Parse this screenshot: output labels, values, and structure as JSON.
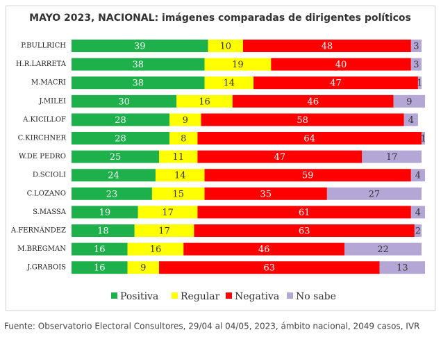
{
  "chart_data": {
    "type": "stacked-bar-horizontal",
    "title": "MAYO 2023, NACIONAL: imágenes comparadas de dirigentes políticos",
    "categories": [
      "P.BULLRICH",
      "H.R.LARRETA",
      "M.MACRI",
      "J.MILEI",
      "A.KICILLOF",
      "C.KIRCHNER",
      "W.DE PEDRO",
      "D.SCIOLI",
      "C.LOZANO",
      "S.MASSA",
      "A.FERNÁNDEZ",
      "M.BREGMAN",
      "J.GRABOIS"
    ],
    "series": [
      {
        "name": "Positiva",
        "color": "#1db04b",
        "values": [
          39,
          38,
          38,
          30,
          28,
          28,
          25,
          24,
          23,
          19,
          18,
          16,
          16
        ]
      },
      {
        "name": "Regular",
        "color": "#ffff00",
        "values": [
          10,
          19,
          14,
          16,
          9,
          8,
          11,
          14,
          15,
          17,
          17,
          16,
          9
        ]
      },
      {
        "name": "Negativa",
        "color": "#ff0000",
        "values": [
          48,
          40,
          47,
          46,
          58,
          64,
          47,
          59,
          35,
          61,
          63,
          46,
          63
        ]
      },
      {
        "name": "No sabe",
        "color": "#b4a7d6",
        "values": [
          3,
          3,
          1,
          9,
          4,
          1,
          17,
          4,
          27,
          4,
          2,
          22,
          13
        ]
      }
    ],
    "source": "Fuente: Observatorio Electoral Consultores, 29/04 al 04/05, 2023, ámbito nacional, 2049 casos, IVR"
  }
}
